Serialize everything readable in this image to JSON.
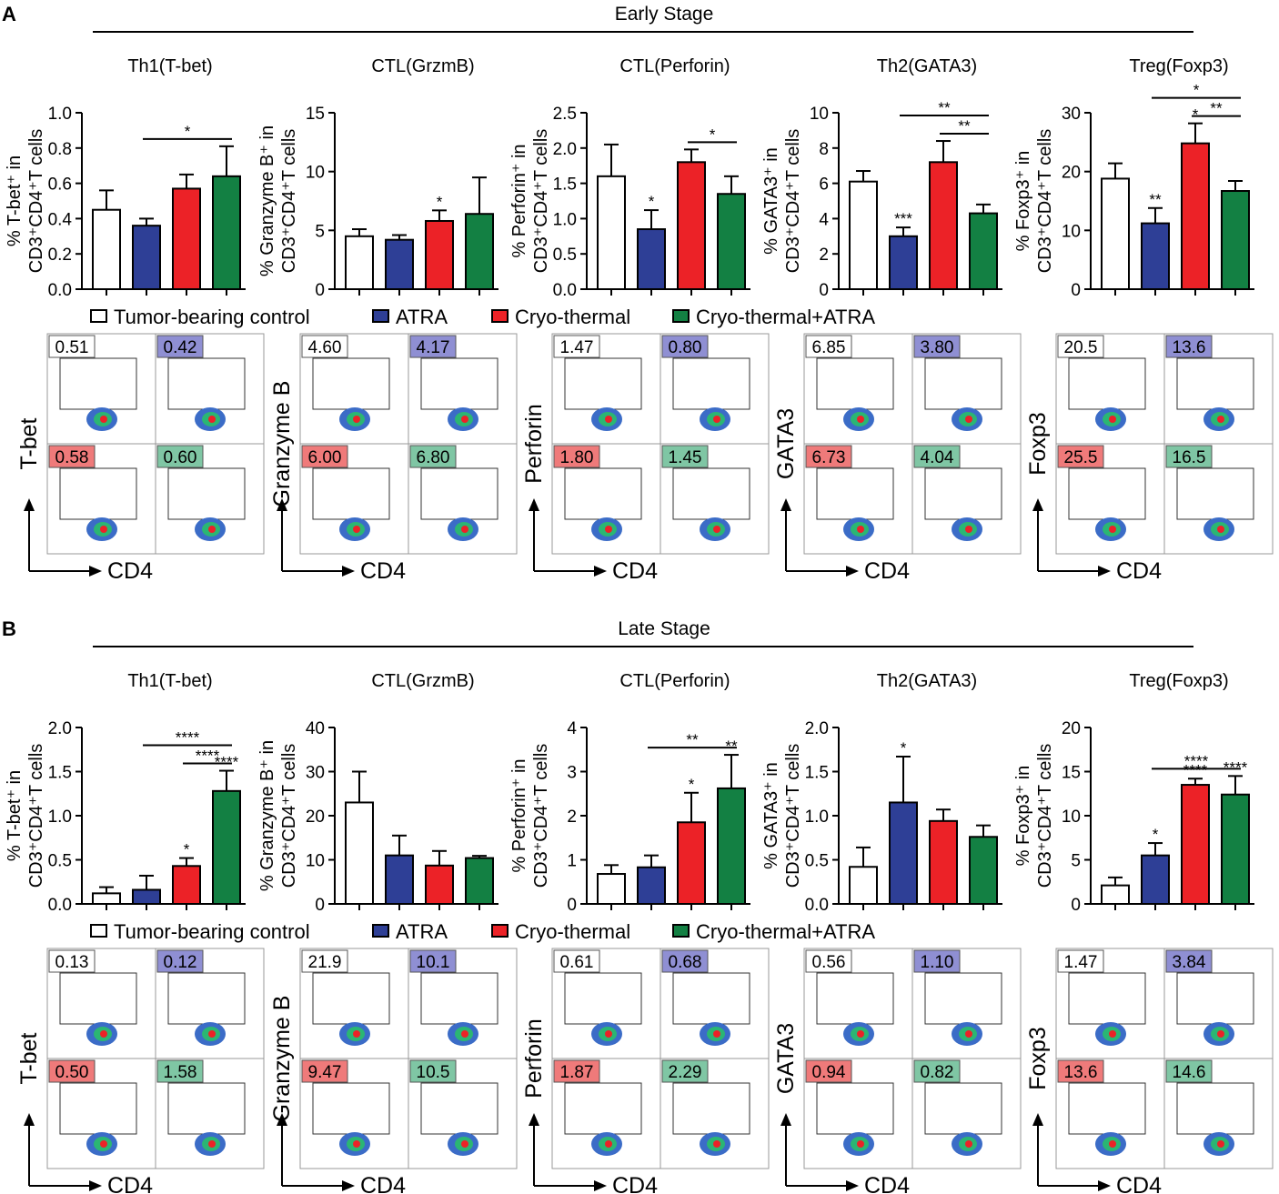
{
  "colors": {
    "control": "#ffffff",
    "atra": "#2e3f96",
    "cryo": "#ec2227",
    "combo": "#138043",
    "atra_badge": "#8f8fd3",
    "cryo_badge": "#ef7a7a",
    "combo_badge": "#7fc6a4",
    "control_badge": "#ffffff"
  },
  "legend": [
    "Tumor-bearing control",
    "ATRA",
    "Cryo-thermal",
    "Cryo-thermal+ATRA"
  ],
  "flow_x_label": "CD4",
  "panels": [
    {
      "letter": "A",
      "stage": "Early Stage",
      "chart_data": [
        {
          "type": "bar",
          "title": "Th1(T-bet)",
          "ylabel_line1": "% T-bet⁺ in",
          "ylabel_line2": "CD3⁺CD4⁺T cells",
          "ylim": [
            0,
            1.0
          ],
          "ticks": [
            "0.0",
            "0.2",
            "0.4",
            "0.6",
            "0.8",
            "1.0"
          ],
          "categories": [
            "Tumor-bearing control",
            "ATRA",
            "Cryo-thermal",
            "Cryo-thermal+ATRA"
          ],
          "values": [
            0.45,
            0.36,
            0.57,
            0.64
          ],
          "errors": [
            0.11,
            0.04,
            0.08,
            0.17
          ],
          "stars": [
            "",
            "",
            "",
            ""
          ],
          "brackets": [
            {
              "from": 1,
              "to": 3,
              "label": "*",
              "level": 0
            }
          ]
        },
        {
          "type": "bar",
          "title": "CTL(GrzmB)",
          "ylabel_line1": "% Granzyme B⁺ in",
          "ylabel_line2": "CD3⁺CD4⁺T cells",
          "ylim": [
            0,
            15
          ],
          "ticks": [
            "0",
            "5",
            "10",
            "15"
          ],
          "categories": [
            "Tumor-bearing control",
            "ATRA",
            "Cryo-thermal",
            "Cryo-thermal+ATRA"
          ],
          "values": [
            4.5,
            4.2,
            5.8,
            6.4
          ],
          "errors": [
            0.6,
            0.4,
            0.9,
            3.1
          ],
          "stars": [
            "",
            "",
            "*",
            ""
          ],
          "brackets": []
        },
        {
          "type": "bar",
          "title": "CTL(Perforin)",
          "ylabel_line1": "% Perforin⁺ in",
          "ylabel_line2": "CD3⁺CD4⁺T cells",
          "ylim": [
            0,
            2.5
          ],
          "ticks": [
            "0.0",
            "0.5",
            "1.0",
            "1.5",
            "2.0",
            "2.5"
          ],
          "categories": [
            "Tumor-bearing control",
            "ATRA",
            "Cryo-thermal",
            "Cryo-thermal+ATRA"
          ],
          "values": [
            1.6,
            0.85,
            1.8,
            1.35
          ],
          "errors": [
            0.45,
            0.27,
            0.18,
            0.25
          ],
          "stars": [
            "",
            "*",
            "",
            ""
          ],
          "brackets": [
            {
              "from": 2,
              "to": 3,
              "label": "*",
              "level": 0
            }
          ]
        },
        {
          "type": "bar",
          "title": "Th2(GATA3)",
          "ylabel_line1": "% GATA3⁺ in",
          "ylabel_line2": "CD3⁺CD4⁺T cells",
          "ylim": [
            0,
            10
          ],
          "ticks": [
            "0",
            "2",
            "4",
            "6",
            "8",
            "10"
          ],
          "categories": [
            "Tumor-bearing control",
            "ATRA",
            "Cryo-thermal",
            "Cryo-thermal+ATRA"
          ],
          "values": [
            6.1,
            3.0,
            7.2,
            4.3
          ],
          "errors": [
            0.6,
            0.5,
            1.2,
            0.5
          ],
          "stars": [
            "",
            "***",
            "",
            ""
          ],
          "brackets": [
            {
              "from": 1,
              "to": 3,
              "label": "**",
              "level": 1
            },
            {
              "from": 2,
              "to": 3,
              "label": "**",
              "level": 0
            }
          ]
        },
        {
          "type": "bar",
          "title": "Treg(Foxp3)",
          "ylabel_line1": "% Foxp3⁺ in",
          "ylabel_line2": "CD3⁺CD4⁺T cells",
          "ylim": [
            0,
            30
          ],
          "ticks": [
            "0",
            "10",
            "20",
            "30"
          ],
          "categories": [
            "Tumor-bearing control",
            "ATRA",
            "Cryo-thermal",
            "Cryo-thermal+ATRA"
          ],
          "values": [
            18.8,
            11.2,
            24.8,
            16.7
          ],
          "errors": [
            2.6,
            2.6,
            3.4,
            1.7
          ],
          "stars": [
            "",
            "**",
            "*",
            ""
          ],
          "brackets": [
            {
              "from": 1,
              "to": 3,
              "label": "*",
              "level": 1
            },
            {
              "from": 2,
              "to": 3,
              "label": "**",
              "level": 0
            }
          ]
        }
      ],
      "flow": [
        {
          "marker": "T-bet",
          "values": [
            "0.51",
            "0.42",
            "0.58",
            "0.60"
          ]
        },
        {
          "marker": "Granzyme B",
          "values": [
            "4.60",
            "4.17",
            "6.00",
            "6.80"
          ]
        },
        {
          "marker": "Perforin",
          "values": [
            "1.47",
            "0.80",
            "1.80",
            "1.45"
          ]
        },
        {
          "marker": "GATA3",
          "values": [
            "6.85",
            "3.80",
            "6.73",
            "4.04"
          ]
        },
        {
          "marker": "Foxp3",
          "values": [
            "20.5",
            "13.6",
            "25.5",
            "16.5"
          ]
        }
      ]
    },
    {
      "letter": "B",
      "stage": "Late Stage",
      "chart_data": [
        {
          "type": "bar",
          "title": "Th1(T-bet)",
          "ylabel_line1": "% T-bet⁺ in",
          "ylabel_line2": "CD3⁺CD4⁺T cells",
          "ylim": [
            0,
            2.0
          ],
          "ticks": [
            "0.0",
            "0.5",
            "1.0",
            "1.5",
            "2.0"
          ],
          "categories": [
            "Tumor-bearing control",
            "ATRA",
            "Cryo-thermal",
            "Cryo-thermal+ATRA"
          ],
          "values": [
            0.12,
            0.16,
            0.43,
            1.28
          ],
          "errors": [
            0.07,
            0.16,
            0.09,
            0.23
          ],
          "stars": [
            "",
            "",
            "*",
            "****"
          ],
          "brackets": [
            {
              "from": 1,
              "to": 3,
              "label": "****",
              "level": 1
            },
            {
              "from": 2,
              "to": 3,
              "label": "****",
              "level": 0
            }
          ]
        },
        {
          "type": "bar",
          "title": "CTL(GrzmB)",
          "ylabel_line1": "% Granzyme B⁺ in",
          "ylabel_line2": "CD3⁺CD4⁺T cells",
          "ylim": [
            0,
            40
          ],
          "ticks": [
            "0",
            "10",
            "20",
            "30",
            "40"
          ],
          "categories": [
            "Tumor-bearing control",
            "ATRA",
            "Cryo-thermal",
            "Cryo-thermal+ATRA"
          ],
          "values": [
            23.0,
            11.0,
            8.7,
            10.4
          ],
          "errors": [
            7.0,
            4.5,
            3.3,
            0.5
          ],
          "stars": [
            "",
            "",
            "",
            ""
          ],
          "brackets": []
        },
        {
          "type": "bar",
          "title": "CTL(Perforin)",
          "ylabel_line1": "% Perforin⁺ in",
          "ylabel_line2": "CD3⁺CD4⁺T cells",
          "ylim": [
            0,
            4
          ],
          "ticks": [
            "0",
            "1",
            "2",
            "3",
            "4"
          ],
          "categories": [
            "Tumor-bearing control",
            "ATRA",
            "Cryo-thermal",
            "Cryo-thermal+ATRA"
          ],
          "values": [
            0.68,
            0.83,
            1.85,
            2.62
          ],
          "errors": [
            0.2,
            0.27,
            0.67,
            0.76
          ],
          "stars": [
            "",
            "",
            "*",
            "**"
          ],
          "brackets": [
            {
              "from": 1,
              "to": 3,
              "label": "**",
              "level": 0
            }
          ]
        },
        {
          "type": "bar",
          "title": "Th2(GATA3)",
          "ylabel_line1": "% GATA3⁺ in",
          "ylabel_line2": "CD3⁺CD4⁺T cells",
          "ylim": [
            0,
            2.0
          ],
          "ticks": [
            "0.0",
            "0.5",
            "1.0",
            "1.5",
            "2.0"
          ],
          "categories": [
            "Tumor-bearing control",
            "ATRA",
            "Cryo-thermal",
            "Cryo-thermal+ATRA"
          ],
          "values": [
            0.42,
            1.15,
            0.94,
            0.76
          ],
          "errors": [
            0.22,
            0.52,
            0.13,
            0.13
          ],
          "stars": [
            "",
            "*",
            "",
            ""
          ],
          "brackets": []
        },
        {
          "type": "bar",
          "title": "Treg(Foxp3)",
          "ylabel_line1": "% Foxp3⁺ in",
          "ylabel_line2": "CD3⁺CD4⁺T cells",
          "ylim": [
            0,
            20
          ],
          "ticks": [
            "0",
            "5",
            "10",
            "15",
            "20"
          ],
          "categories": [
            "Tumor-bearing control",
            "ATRA",
            "Cryo-thermal",
            "Cryo-thermal+ATRA"
          ],
          "values": [
            2.1,
            5.5,
            13.5,
            12.4
          ],
          "errors": [
            0.9,
            1.4,
            0.7,
            2.1
          ],
          "stars": [
            "",
            "*",
            "****",
            "****"
          ],
          "brackets": [
            {
              "from": 1,
              "to": 3,
              "label": "****",
              "level": 0
            }
          ]
        }
      ],
      "flow": [
        {
          "marker": "T-bet",
          "values": [
            "0.13",
            "0.12",
            "0.50",
            "1.58"
          ]
        },
        {
          "marker": "Granzyme B",
          "values": [
            "21.9",
            "10.1",
            "9.47",
            "10.5"
          ]
        },
        {
          "marker": "Perforin",
          "values": [
            "0.61",
            "0.68",
            "1.87",
            "2.29"
          ]
        },
        {
          "marker": "GATA3",
          "values": [
            "0.56",
            "1.10",
            "0.94",
            "0.82"
          ]
        },
        {
          "marker": "Foxp3",
          "values": [
            "1.47",
            "3.84",
            "13.6",
            "14.6"
          ]
        }
      ]
    }
  ]
}
